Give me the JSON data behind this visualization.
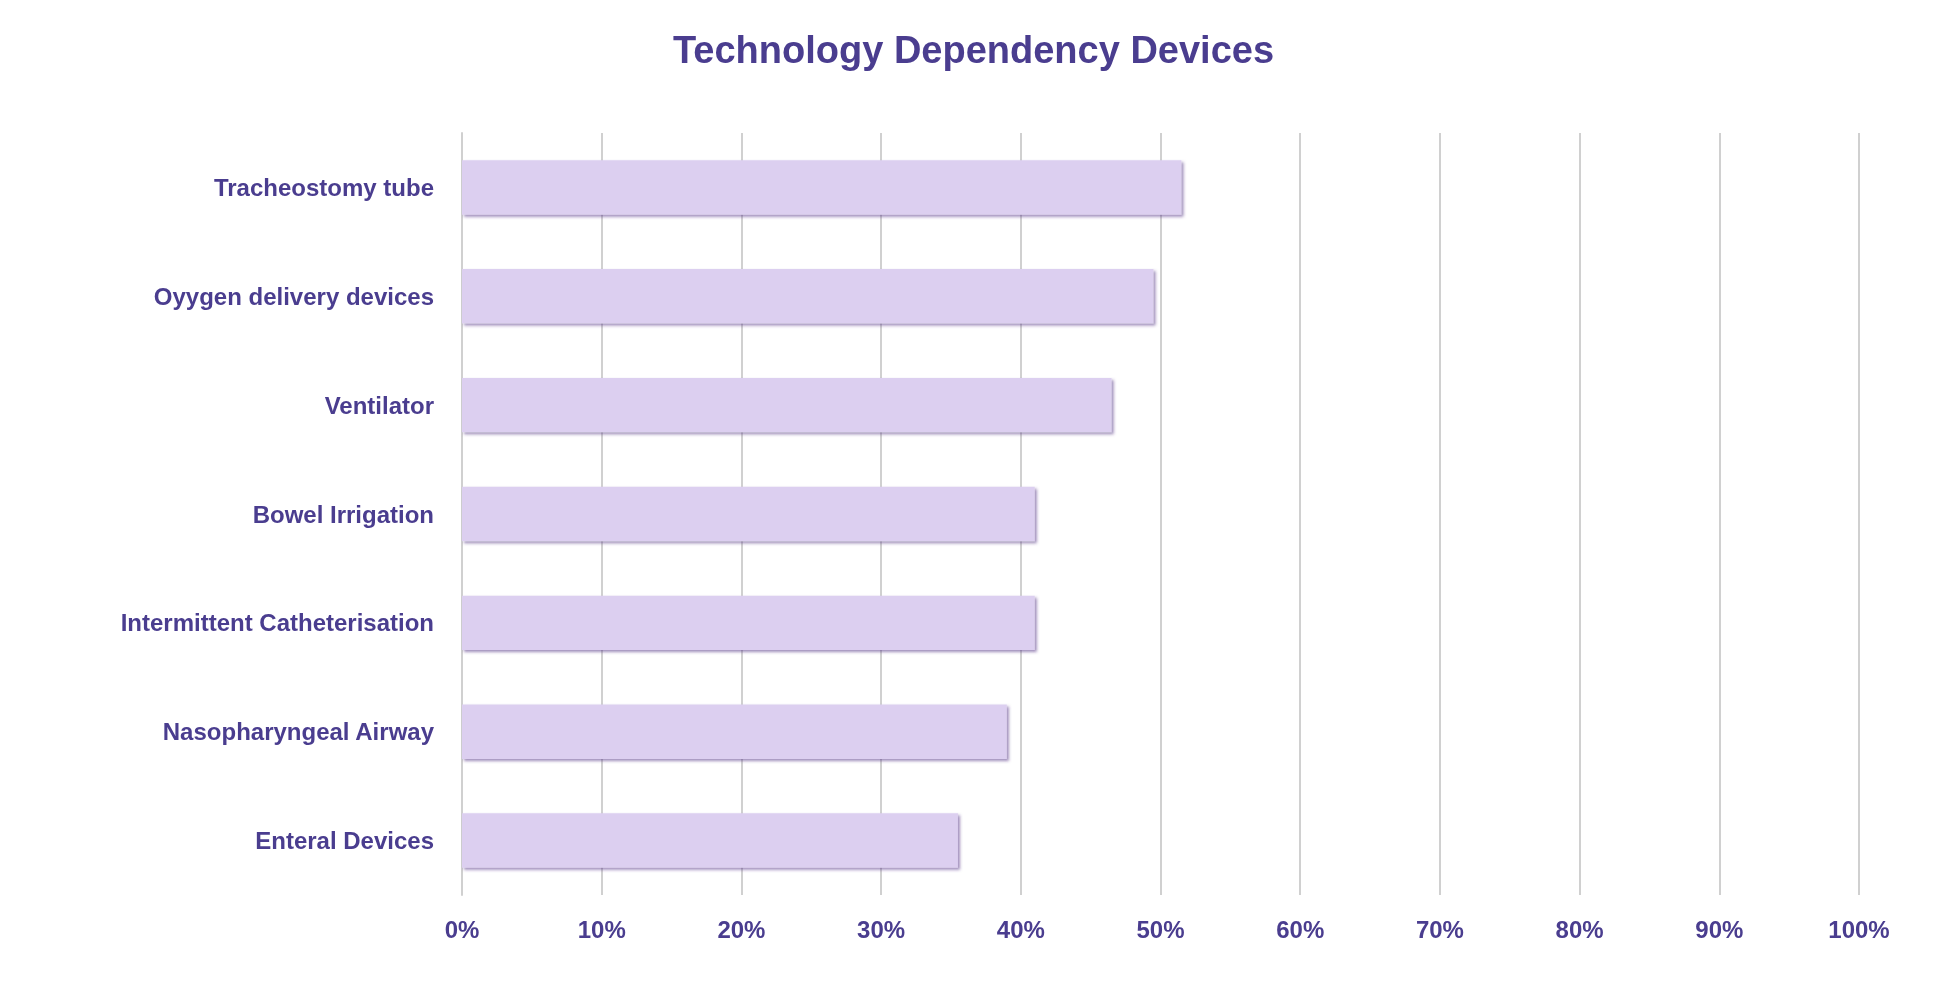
{
  "chart_data": {
    "type": "bar",
    "orientation": "horizontal",
    "title": "Technology Dependency Devices",
    "categories": [
      "Tracheostomy tube",
      "Oyygen delivery devices",
      "Ventilator",
      "Bowel Irrigation",
      "Intermittent Catheterisation",
      "Nasopharyngeal Airway",
      "Enteral Devices"
    ],
    "values": [
      51.5,
      49.5,
      46.5,
      41,
      41,
      39,
      35.5
    ],
    "color": "#dccff0",
    "xlim": [
      0,
      100
    ],
    "xticks": [
      {
        "value": 0,
        "label": "0%"
      },
      {
        "value": 10,
        "label": "10%"
      },
      {
        "value": 20,
        "label": "20%"
      },
      {
        "value": 30,
        "label": "30%"
      },
      {
        "value": 40,
        "label": "40%"
      },
      {
        "value": 50,
        "label": "50%"
      },
      {
        "value": 60,
        "label": "60%"
      },
      {
        "value": 70,
        "label": "70%"
      },
      {
        "value": 80,
        "label": "80%"
      },
      {
        "value": 90,
        "label": "90%"
      },
      {
        "value": 100,
        "label": "100%"
      }
    ],
    "grid": "x"
  }
}
